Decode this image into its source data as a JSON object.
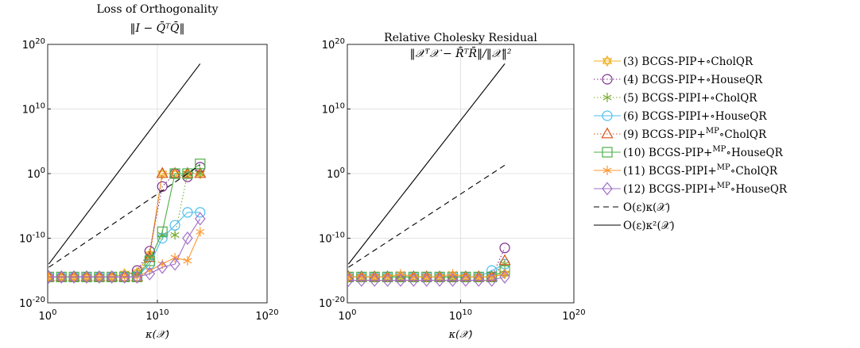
{
  "chart_data": [
    {
      "type": "line",
      "title": "Loss of Orthogonality",
      "subtitle": "‖I − Q̄ᵀQ̄‖",
      "xlabel": "κ(𝒳)",
      "ylabel": "",
      "xscale": "log",
      "yscale": "log",
      "xlim": [
        1,
        1e+20
      ],
      "ylim": [
        1e-20,
        1e+20
      ],
      "xticks": [
        {
          "base": "10",
          "exp": "0"
        },
        {
          "base": "10",
          "exp": "10"
        },
        {
          "base": "10",
          "exp": "20"
        }
      ],
      "yticks": [
        {
          "base": "10",
          "exp": "-20"
        },
        {
          "base": "10",
          "exp": "-10"
        },
        {
          "base": "10",
          "exp": "0"
        },
        {
          "base": "10",
          "exp": "10"
        },
        {
          "base": "10",
          "exp": "20"
        }
      ],
      "grid": true,
      "series": [
        {
          "name": "(3) BCGS-PIP+∘CholQR",
          "x": [
            1,
            2,
            3,
            4,
            5,
            6,
            7,
            8,
            9,
            10,
            11,
            12,
            13
          ],
          "y": [
            -16,
            -16,
            -16,
            -16,
            -16,
            -16,
            -15.5,
            -15.3,
            -12.5,
            0,
            0,
            0,
            0
          ]
        },
        {
          "name": "(4) BCGS-PIP+∘HouseQR",
          "x": [
            1,
            2,
            3,
            4,
            5,
            6,
            7,
            8,
            9,
            10,
            11,
            12,
            13
          ],
          "y": [
            -16,
            -16,
            -16,
            -16,
            -16,
            -16,
            -16,
            -15,
            -12,
            -2,
            0,
            -0.5,
            1
          ]
        },
        {
          "name": "(5) BCGS-PIPI+∘CholQR",
          "x": [
            1,
            2,
            3,
            4,
            5,
            6,
            7,
            8,
            9,
            10,
            11,
            12,
            13
          ],
          "y": [
            -16,
            -16,
            -16,
            -16,
            -16,
            -16,
            -16,
            -15.5,
            -13,
            -9.5,
            -9.5,
            0,
            0
          ]
        },
        {
          "name": "(6) BCGS-PIPI+∘HouseQR",
          "x": [
            1,
            2,
            3,
            4,
            5,
            6,
            7,
            8,
            9,
            10,
            11,
            12,
            13
          ],
          "y": [
            -16,
            -16,
            -16,
            -16,
            -16,
            -16,
            -16,
            -16,
            -14,
            -10,
            -8,
            -6,
            -6
          ]
        },
        {
          "name": "(9) BCGS-PIP+MP∘CholQR",
          "x": [
            1,
            2,
            3,
            4,
            5,
            6,
            7,
            8,
            9,
            10,
            11,
            12,
            13
          ],
          "y": [
            -16,
            -16,
            -16,
            -16,
            -16,
            -16,
            -16,
            -16,
            -13,
            0,
            0,
            0,
            0
          ]
        },
        {
          "name": "(10) BCGS-PIP+MP∘HouseQR",
          "x": [
            1,
            2,
            3,
            4,
            5,
            6,
            7,
            8,
            9,
            10,
            11,
            12,
            13
          ],
          "y": [
            -16,
            -16,
            -16,
            -16,
            -16,
            -16,
            -16,
            -16,
            -13.5,
            -9,
            0,
            0,
            1.5
          ]
        },
        {
          "name": "(11) BCGS-PIPI+MP∘CholQR",
          "x": [
            1,
            2,
            3,
            4,
            5,
            6,
            7,
            8,
            9,
            10,
            11,
            12,
            13
          ],
          "y": [
            -16,
            -16,
            -16,
            -16,
            -16,
            -16,
            -16,
            -16,
            -15,
            -14,
            -13,
            -13.5,
            -9
          ]
        },
        {
          "name": "(12) BCGS-PIPI+MP∘HouseQR",
          "x": [
            1,
            2,
            3,
            4,
            5,
            6,
            7,
            8,
            9,
            10,
            11,
            12,
            13
          ],
          "y": [
            -16,
            -16,
            -16,
            -16,
            -16,
            -16,
            -16,
            -16,
            -15.5,
            -14.5,
            -14,
            -10,
            -7
          ]
        },
        {
          "name": "O(ε)κ(𝒳)",
          "x": [
            1,
            13
          ],
          "y": [
            -14.5,
            1.3
          ]
        },
        {
          "name": "O(ε)κ²(𝒳)",
          "x": [
            1,
            13
          ],
          "y": [
            -14,
            17
          ]
        }
      ]
    },
    {
      "type": "line",
      "title": "Relative Cholesky Residual",
      "subtitle": "‖𝒳ᵀ𝒳 − R̄ᵀR̄‖/‖𝒳‖²",
      "xlabel": "κ(𝒳)",
      "ylabel": "",
      "xscale": "log",
      "yscale": "log",
      "xlim": [
        1,
        1e+20
      ],
      "ylim": [
        1e-20,
        1e+20
      ],
      "xticks": [
        {
          "base": "10",
          "exp": "0"
        },
        {
          "base": "10",
          "exp": "10"
        },
        {
          "base": "10",
          "exp": "20"
        }
      ],
      "yticks": [
        {
          "base": "10",
          "exp": "-20"
        },
        {
          "base": "10",
          "exp": "-10"
        },
        {
          "base": "10",
          "exp": "0"
        },
        {
          "base": "10",
          "exp": "10"
        },
        {
          "base": "10",
          "exp": "20"
        }
      ],
      "grid": true,
      "series": [
        {
          "name": "(3) BCGS-PIP+∘CholQR",
          "x": [
            1,
            2,
            3,
            4,
            5,
            6,
            7,
            8,
            9,
            10,
            11,
            12,
            13
          ],
          "y": [
            -16,
            -16,
            -16,
            -16,
            -16,
            -16,
            -16,
            -16,
            -16,
            -16,
            -16,
            -16,
            -15.5
          ]
        },
        {
          "name": "(4) BCGS-PIP+∘HouseQR",
          "x": [
            1,
            2,
            3,
            4,
            5,
            6,
            7,
            8,
            9,
            10,
            11,
            12,
            13
          ],
          "y": [
            -16,
            -16,
            -16,
            -16,
            -16,
            -16,
            -16,
            -16,
            -16,
            -16,
            -16,
            -16,
            -11.5
          ]
        },
        {
          "name": "(5) BCGS-PIPI+∘CholQR",
          "x": [
            1,
            2,
            3,
            4,
            5,
            6,
            7,
            8,
            9,
            10,
            11,
            12,
            13
          ],
          "y": [
            -16,
            -16,
            -16,
            -16,
            -16,
            -16,
            -16,
            -16,
            -16,
            -16,
            -16,
            -16,
            -14
          ]
        },
        {
          "name": "(6) BCGS-PIPI+∘HouseQR",
          "x": [
            1,
            2,
            3,
            4,
            5,
            6,
            7,
            8,
            9,
            10,
            11,
            12,
            13
          ],
          "y": [
            -16,
            -16,
            -16,
            -16,
            -16,
            -16,
            -16,
            -16,
            -16,
            -16,
            -16,
            -15,
            -14
          ]
        },
        {
          "name": "(9) BCGS-PIP+MP∘CholQR",
          "x": [
            1,
            2,
            3,
            4,
            5,
            6,
            7,
            8,
            9,
            10,
            11,
            12,
            13
          ],
          "y": [
            -16,
            -16,
            -16,
            -16,
            -16,
            -16,
            -16,
            -16,
            -16,
            -16,
            -16,
            -16,
            -13.5
          ]
        },
        {
          "name": "(10) BCGS-PIP+MP∘HouseQR",
          "x": [
            1,
            2,
            3,
            4,
            5,
            6,
            7,
            8,
            9,
            10,
            11,
            12,
            13
          ],
          "y": [
            -16,
            -16,
            -16,
            -16,
            -16,
            -16,
            -16,
            -16,
            -16,
            -16,
            -16,
            -16,
            -15
          ]
        },
        {
          "name": "(11) BCGS-PIPI+MP∘CholQR",
          "x": [
            1,
            2,
            3,
            4,
            5,
            6,
            7,
            8,
            9,
            10,
            11,
            12,
            13
          ],
          "y": [
            -16,
            -16,
            -16,
            -16,
            -15.5,
            -16,
            -16,
            -16,
            -15.5,
            -16,
            -16,
            -16,
            -15.5
          ]
        },
        {
          "name": "(12) BCGS-PIPI+MP∘HouseQR",
          "x": [
            1,
            2,
            3,
            4,
            5,
            6,
            7,
            8,
            9,
            10,
            11,
            12,
            13
          ],
          "y": [
            -16.5,
            -16.5,
            -16.5,
            -16.5,
            -16.5,
            -16.5,
            -16.5,
            -16.5,
            -16.5,
            -16.5,
            -16.5,
            -16.5,
            -16
          ]
        },
        {
          "name": "O(ε)κ(𝒳)",
          "x": [
            1,
            13
          ],
          "y": [
            -14.5,
            1.3
          ]
        },
        {
          "name": "O(ε)κ²(𝒳)",
          "x": [
            1,
            13
          ],
          "y": [
            -14,
            17
          ]
        }
      ]
    }
  ],
  "legend": {
    "placement": "right",
    "entries": [
      {
        "pre": "(3) BCGS-PIP+∘CholQR",
        "sup": "",
        "post": "",
        "color": "#edb120",
        "marker": "hexagram",
        "dash": "solid"
      },
      {
        "pre": "(4) BCGS-PIP+∘HouseQR",
        "sup": "",
        "post": "",
        "color": "#7e2f8e",
        "marker": "circle",
        "dash": "dotted"
      },
      {
        "pre": "(5) BCGS-PIPI+∘CholQR",
        "sup": "",
        "post": "",
        "color": "#77ac30",
        "marker": "asterisk",
        "dash": "dotted"
      },
      {
        "pre": "(6) BCGS-PIPI+∘HouseQR",
        "sup": "",
        "post": "",
        "color": "#4dbeee",
        "marker": "circle",
        "dash": "solid"
      },
      {
        "pre": "(9) BCGS-PIP+",
        "sup": "MP",
        "post": "∘CholQR",
        "color": "#d95319",
        "marker": "triangle",
        "dash": "dotted"
      },
      {
        "pre": "(10) BCGS-PIP+",
        "sup": "MP",
        "post": "∘HouseQR",
        "color": "#4daf4a",
        "marker": "square",
        "dash": "solid"
      },
      {
        "pre": "(11) BCGS-PIPI+",
        "sup": "MP",
        "post": "∘CholQR",
        "color": "#ff9933",
        "marker": "asterisk",
        "dash": "solid"
      },
      {
        "pre": "(12) BCGS-PIPI+",
        "sup": "MP",
        "post": "∘HouseQR",
        "color": "#a070c8",
        "marker": "diamond",
        "dash": "solid"
      },
      {
        "pre": "O(ε)κ(𝒳)",
        "sup": "",
        "post": "",
        "color": "#000000",
        "marker": "none",
        "dash": "dashed"
      },
      {
        "pre": "O(ε)κ²(𝒳)",
        "sup": "",
        "post": "",
        "color": "#000000",
        "marker": "none",
        "dash": "solid"
      }
    ]
  }
}
